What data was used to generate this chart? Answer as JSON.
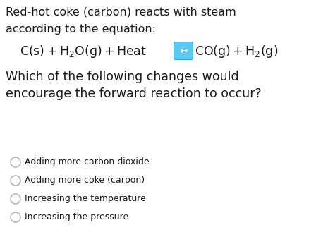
{
  "background_color": "#ffffff",
  "title_line1": "Red-hot coke (carbon) reacts with steam",
  "title_line2": "according to the equation:",
  "question_line1": "Which of the following changes would",
  "question_line2": "encourage the forward reaction to occur?",
  "options": [
    "Adding more carbon dioxide",
    "Adding more coke (carbon)",
    "Increasing the temperature",
    "Increasing the pressure"
  ],
  "text_color": "#1a1a1a",
  "arrow_box_color": "#5bc8f0",
  "arrow_box_border": "#3aaad0",
  "title_fontsize": 11.5,
  "equation_fontsize": 12.5,
  "question_fontsize": 12.5,
  "option_fontsize": 9.0,
  "circle_color": "#aaaaaa",
  "figsize": [
    4.48,
    3.53
  ],
  "dpi": 100
}
